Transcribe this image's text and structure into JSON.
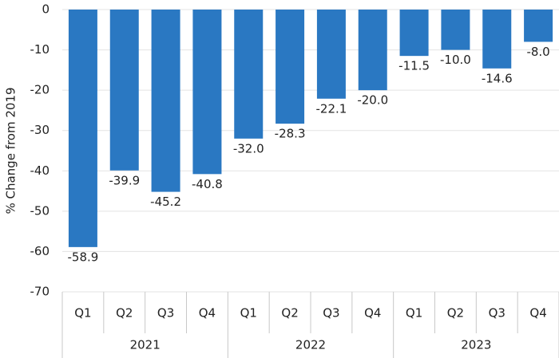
{
  "chart_data": {
    "type": "bar",
    "y_label": "% Change from 2019",
    "categories": [
      "Q1",
      "Q2",
      "Q3",
      "Q4",
      "Q1",
      "Q2",
      "Q3",
      "Q4",
      "Q1",
      "Q2",
      "Q3",
      "Q4"
    ],
    "groups": [
      "2021",
      "2022",
      "2023"
    ],
    "values": [
      -58.9,
      -39.9,
      -45.2,
      -40.8,
      -32.0,
      -28.3,
      -22.1,
      -20.0,
      -11.5,
      -10.0,
      -14.6,
      -8.0
    ],
    "value_labels": [
      "-58.9",
      "-39.9",
      "-45.2",
      "-40.8",
      "-32.0",
      "-28.3",
      "-22.1",
      "-20.0",
      "-11.5",
      "-10.0",
      "-14.6",
      "-8.0"
    ],
    "color": "#2a78c2",
    "ylim": [
      -70,
      0
    ],
    "yticks": [
      0,
      -10,
      -20,
      -30,
      -40,
      -50,
      -60,
      -70
    ],
    "grid": true
  }
}
